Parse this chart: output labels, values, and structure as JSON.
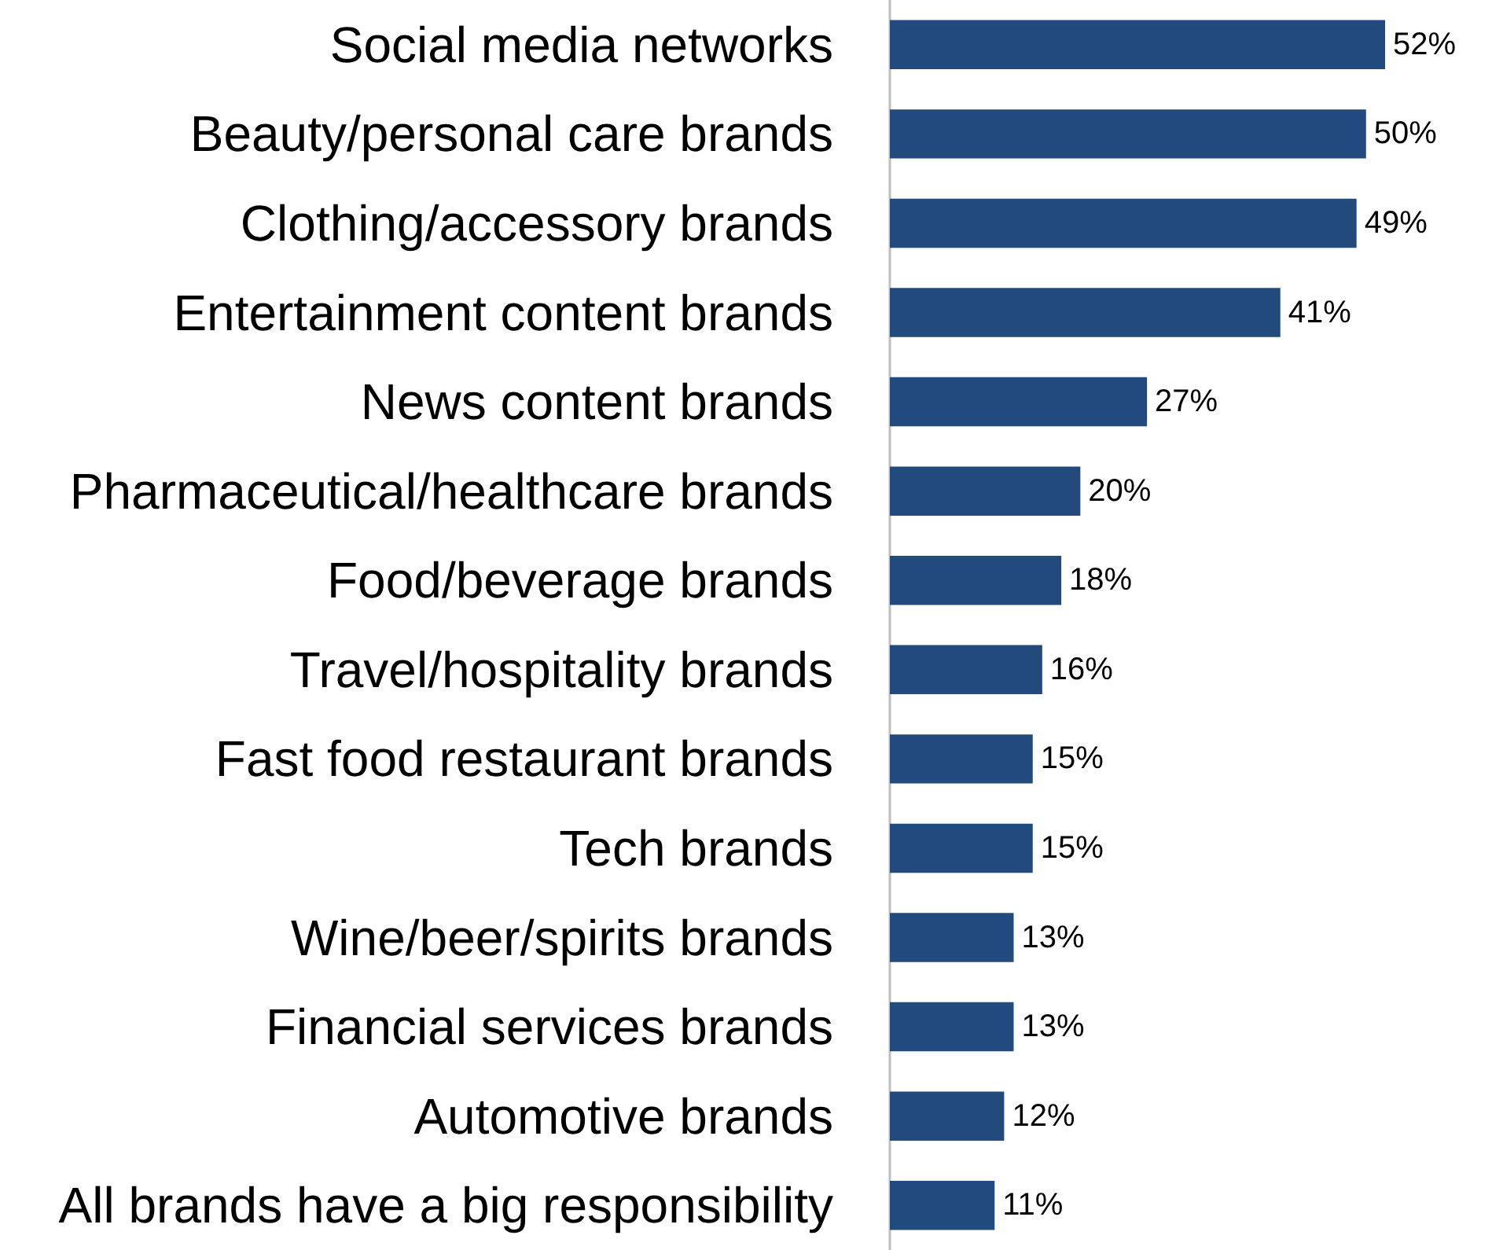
{
  "chart_data": {
    "type": "bar",
    "orientation": "horizontal",
    "categories": [
      "Social media networks",
      "Beauty/personal care brands",
      "Clothing/accessory brands",
      "Entertainment content brands",
      "News content brands",
      "Pharmaceutical/healthcare brands",
      "Food/beverage brands",
      "Travel/hospitality brands",
      "Fast food restaurant brands",
      "Tech brands",
      "Wine/beer/spirits brands",
      "Financial services brands",
      "Automotive brands",
      "All brands have a big responsibility"
    ],
    "values": [
      52,
      50,
      49,
      41,
      27,
      20,
      18,
      16,
      15,
      15,
      13,
      13,
      12,
      11
    ],
    "value_labels": [
      "52%",
      "50%",
      "49%",
      "41%",
      "27%",
      "20%",
      "18%",
      "16%",
      "15%",
      "15%",
      "13%",
      "13%",
      "12%",
      "11%"
    ],
    "color": "#234a7c"
  }
}
